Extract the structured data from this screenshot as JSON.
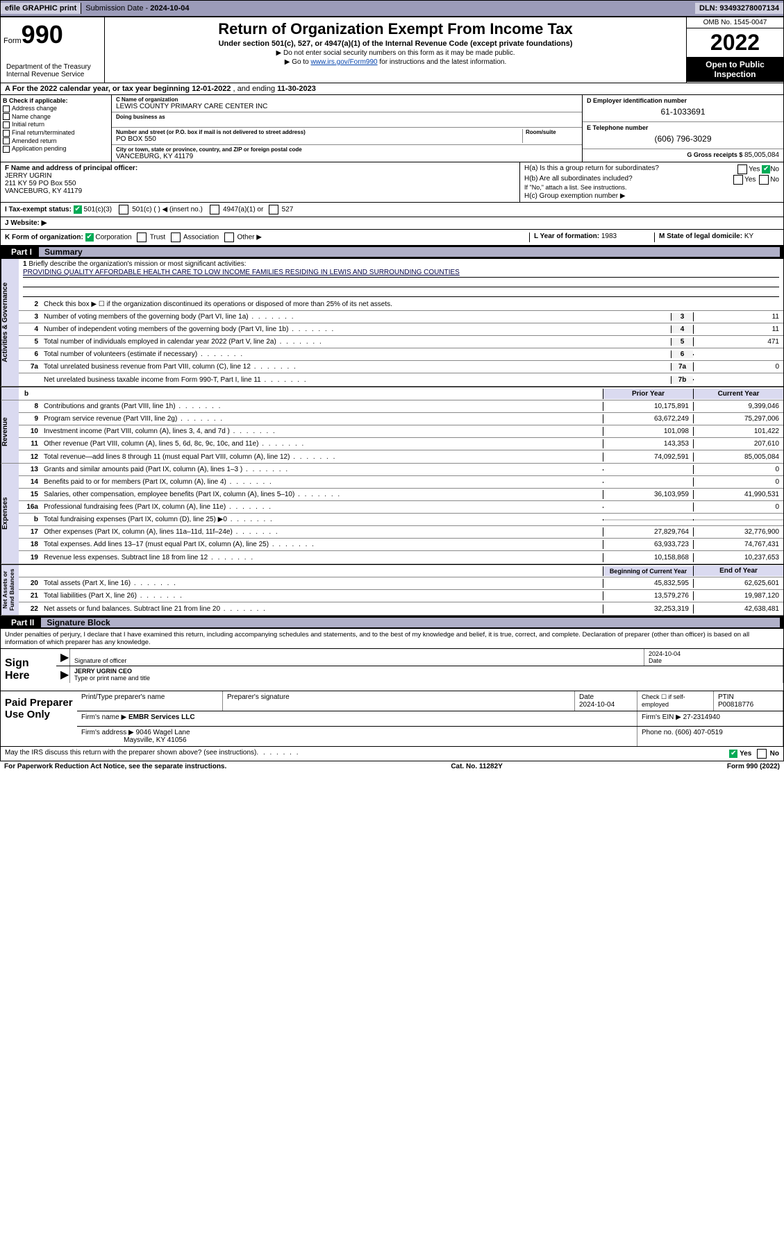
{
  "topbar": {
    "efile": "efile GRAPHIC print",
    "submission_label": "Submission Date - ",
    "submission_date": "2024-10-04",
    "dln_label": "DLN: ",
    "dln": "93493278007134"
  },
  "header": {
    "form_label": "Form",
    "form_num": "990",
    "title": "Return of Organization Exempt From Income Tax",
    "sub": "Under section 501(c), 527, or 4947(a)(1) of the Internal Revenue Code (except private foundations)",
    "note1": "▶ Do not enter social security numbers on this form as it may be made public.",
    "note2_pre": "▶ Go to ",
    "note2_link": "www.irs.gov/Form990",
    "note2_post": " for instructions and the latest information.",
    "dept": "Department of the Treasury\nInternal Revenue Service",
    "omb": "OMB No. 1545-0047",
    "year": "2022",
    "open": "Open to Public Inspection"
  },
  "row_a": {
    "text_pre": "A For the 2022 calendar year, or tax year beginning ",
    "begin": "12-01-2022",
    "mid": " , and ending ",
    "end": "11-30-2023"
  },
  "box_b": {
    "title": "B Check if applicable:",
    "items": [
      "Address change",
      "Name change",
      "Initial return",
      "Final return/terminated",
      "Amended return",
      "Application pending"
    ]
  },
  "box_c": {
    "name_lbl": "C Name of organization",
    "name": "LEWIS COUNTY PRIMARY CARE CENTER INC",
    "dba_lbl": "Doing business as",
    "dba": "",
    "addr_lbl": "Number and street (or P.O. box if mail is not delivered to street address)",
    "room_lbl": "Room/suite",
    "addr": "PO BOX 550",
    "city_lbl": "City or town, state or province, country, and ZIP or foreign postal code",
    "city": "VANCEBURG, KY  41179"
  },
  "box_d": {
    "ein_lbl": "D Employer identification number",
    "ein": "61-1033691",
    "tel_lbl": "E Telephone number",
    "tel": "(606) 796-3029",
    "gross_lbl": "G Gross receipts $ ",
    "gross": "85,005,084"
  },
  "box_f": {
    "lbl": "F Name and address of principal officer:",
    "name": "JERRY UGRIN",
    "addr1": "211 KY 59 PO Box 550",
    "addr2": "VANCEBURG, KY  41179"
  },
  "box_h": {
    "ha": "H(a)  Is this a group return for subordinates?",
    "hb": "H(b)  Are all subordinates included?",
    "hb_note": "If \"No,\" attach a list. See instructions.",
    "hc": "H(c)  Group exemption number ▶"
  },
  "box_i": {
    "lbl": "I    Tax-exempt status:",
    "opt1": "501(c)(3)",
    "opt2": "501(c) (  ) ◀ (insert no.)",
    "opt3": "4947(a)(1) or",
    "opt4": "527"
  },
  "box_j": {
    "lbl": "J    Website: ▶",
    "val": ""
  },
  "box_k": {
    "lbl": "K Form of organization:",
    "opts": [
      "Corporation",
      "Trust",
      "Association",
      "Other ▶"
    ],
    "l_lbl": "L Year of formation: ",
    "l_val": "1983",
    "m_lbl": "M State of legal domicile: ",
    "m_val": "KY"
  },
  "part1": {
    "num": "Part I",
    "title": "Summary"
  },
  "mission": {
    "num": "1",
    "lbl": "Briefly describe the organization's mission or most significant activities:",
    "text": "PROVIDING QUALITY AFFORDABLE HEALTH CARE TO LOW INCOME FAMILIES RESIDING IN LEWIS AND SURROUNDING COUNTIES"
  },
  "line2": "Check this box ▶ ☐  if the organization discontinued its operations or disposed of more than 25% of its net assets.",
  "gov_lines": [
    {
      "n": "3",
      "t": "Number of voting members of the governing body (Part VI, line 1a)",
      "c": "3",
      "v": "11"
    },
    {
      "n": "4",
      "t": "Number of independent voting members of the governing body (Part VI, line 1b)",
      "c": "4",
      "v": "11"
    },
    {
      "n": "5",
      "t": "Total number of individuals employed in calendar year 2022 (Part V, line 2a)",
      "c": "5",
      "v": "471"
    },
    {
      "n": "6",
      "t": "Total number of volunteers (estimate if necessary)",
      "c": "6",
      "v": ""
    },
    {
      "n": "7a",
      "t": "Total unrelated business revenue from Part VIII, column (C), line 12",
      "c": "7a",
      "v": "0"
    },
    {
      "n": "",
      "t": "Net unrelated business taxable income from Form 990-T, Part I, line 11",
      "c": "7b",
      "v": ""
    }
  ],
  "col_hdrs": {
    "b": "b",
    "prior": "Prior Year",
    "current": "Current Year"
  },
  "rev_lines": [
    {
      "n": "8",
      "t": "Contributions and grants (Part VIII, line 1h)",
      "p": "10,175,891",
      "c": "9,399,046"
    },
    {
      "n": "9",
      "t": "Program service revenue (Part VIII, line 2g)",
      "p": "63,672,249",
      "c": "75,297,006"
    },
    {
      "n": "10",
      "t": "Investment income (Part VIII, column (A), lines 3, 4, and 7d )",
      "p": "101,098",
      "c": "101,422"
    },
    {
      "n": "11",
      "t": "Other revenue (Part VIII, column (A), lines 5, 6d, 8c, 9c, 10c, and 11e)",
      "p": "143,353",
      "c": "207,610"
    },
    {
      "n": "12",
      "t": "Total revenue—add lines 8 through 11 (must equal Part VIII, column (A), line 12)",
      "p": "74,092,591",
      "c": "85,005,084"
    }
  ],
  "exp_lines": [
    {
      "n": "13",
      "t": "Grants and similar amounts paid (Part IX, column (A), lines 1–3 )",
      "p": "",
      "c": "0"
    },
    {
      "n": "14",
      "t": "Benefits paid to or for members (Part IX, column (A), line 4)",
      "p": "",
      "c": "0"
    },
    {
      "n": "15",
      "t": "Salaries, other compensation, employee benefits (Part IX, column (A), lines 5–10)",
      "p": "36,103,959",
      "c": "41,990,531"
    },
    {
      "n": "16a",
      "t": "Professional fundraising fees (Part IX, column (A), line 11e)",
      "p": "",
      "c": "0"
    },
    {
      "n": "b",
      "t": "Total fundraising expenses (Part IX, column (D), line 25) ▶0",
      "p": "GRAY",
      "c": "GRAY"
    },
    {
      "n": "17",
      "t": "Other expenses (Part IX, column (A), lines 11a–11d, 11f–24e)",
      "p": "27,829,764",
      "c": "32,776,900"
    },
    {
      "n": "18",
      "t": "Total expenses. Add lines 13–17 (must equal Part IX, column (A), line 25)",
      "p": "63,933,723",
      "c": "74,767,431"
    },
    {
      "n": "19",
      "t": "Revenue less expenses. Subtract line 18 from line 12",
      "p": "10,158,868",
      "c": "10,237,653"
    }
  ],
  "na_hdrs": {
    "beg": "Beginning of Current Year",
    "end": "End of Year"
  },
  "na_lines": [
    {
      "n": "20",
      "t": "Total assets (Part X, line 16)",
      "p": "45,832,595",
      "c": "62,625,601"
    },
    {
      "n": "21",
      "t": "Total liabilities (Part X, line 26)",
      "p": "13,579,276",
      "c": "19,987,120"
    },
    {
      "n": "22",
      "t": "Net assets or fund balances. Subtract line 21 from line 20",
      "p": "32,253,319",
      "c": "42,638,481"
    }
  ],
  "side_labels": {
    "ag": "Activities & Governance",
    "rev": "Revenue",
    "exp": "Expenses",
    "na": "Net Assets or\nFund Balances"
  },
  "part2": {
    "num": "Part II",
    "title": "Signature Block"
  },
  "sig_intro": "Under penalties of perjury, I declare that I have examined this return, including accompanying schedules and statements, and to the best of my knowledge and belief, it is true, correct, and complete. Declaration of preparer (other than officer) is based on all information of which preparer has any knowledge.",
  "sign": {
    "here": "Sign Here",
    "sig_lbl": "Signature of officer",
    "date_lbl": "Date",
    "date": "2024-10-04",
    "name": "JERRY UGRIN  CEO",
    "name_lbl": "Type or print name and title"
  },
  "paid": {
    "title": "Paid Preparer Use Only",
    "h1": "Print/Type preparer's name",
    "h2": "Preparer's signature",
    "h3": "Date",
    "h3v": "2024-10-04",
    "h4": "Check ☐ if self-employed",
    "h5": "PTIN",
    "h5v": "P00818776",
    "firm_lbl": "Firm's name    ▶ ",
    "firm": "EMBR Services LLC",
    "ein_lbl": "Firm's EIN ▶ ",
    "ein": "27-2314940",
    "addr_lbl": "Firm's address ▶ ",
    "addr1": "9046 Wagel Lane",
    "addr2": "Maysville, KY  41056",
    "phone_lbl": "Phone no. ",
    "phone": "(606) 407-0519"
  },
  "foot": {
    "q": "May the IRS discuss this return with the preparer shown above? (see instructions)",
    "yes": "Yes",
    "no": "No"
  },
  "final": {
    "left": "For Paperwork Reduction Act Notice, see the separate instructions.",
    "mid": "Cat. No. 11282Y",
    "right": "Form 990 (2022)"
  }
}
